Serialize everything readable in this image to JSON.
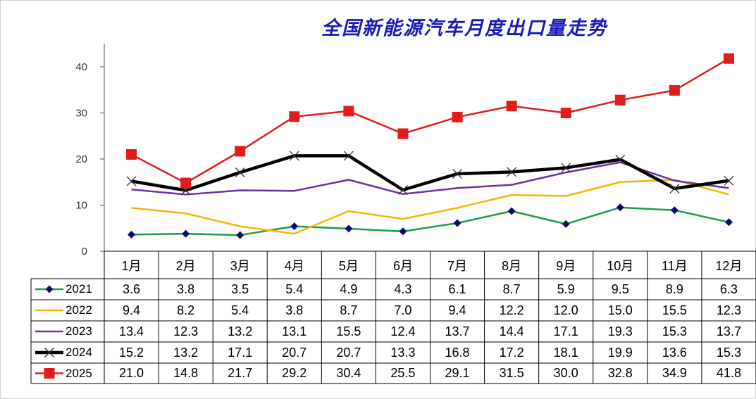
{
  "chart_data": {
    "type": "line",
    "title": "全国新能源汽车月度出口量走势",
    "categories": [
      "1月",
      "2月",
      "3月",
      "4月",
      "5月",
      "6月",
      "7月",
      "8月",
      "9月",
      "10月",
      "11月",
      "12月"
    ],
    "ylim": [
      0,
      45
    ],
    "yticks": [
      0,
      10,
      20,
      30,
      40
    ],
    "grid": false,
    "legend": "data table",
    "series": [
      {
        "name": "2021",
        "color": "#1aa04a",
        "marker": "diamond",
        "marker_color": "#0a0a6e",
        "values": [
          3.6,
          3.8,
          3.5,
          5.4,
          4.9,
          4.3,
          6.1,
          8.7,
          5.9,
          9.5,
          8.9,
          6.3
        ]
      },
      {
        "name": "2022",
        "color": "#f5b800",
        "marker": "none",
        "values": [
          9.4,
          8.2,
          5.4,
          3.8,
          8.7,
          7.0,
          9.4,
          12.2,
          12.0,
          15.0,
          15.5,
          12.3
        ]
      },
      {
        "name": "2023",
        "color": "#7030a0",
        "marker": "none",
        "values": [
          13.4,
          12.3,
          13.2,
          13.1,
          15.5,
          12.4,
          13.7,
          14.4,
          17.1,
          19.3,
          15.3,
          13.7
        ]
      },
      {
        "name": "2024",
        "color": "#000000",
        "marker": "x",
        "values": [
          15.2,
          13.2,
          17.1,
          20.7,
          20.7,
          13.3,
          16.8,
          17.2,
          18.1,
          19.9,
          13.6,
          15.3
        ]
      },
      {
        "name": "2025",
        "color": "#e31b1b",
        "marker": "square",
        "values": [
          21.0,
          14.8,
          21.7,
          29.2,
          30.4,
          25.5,
          29.1,
          31.5,
          30.0,
          32.8,
          34.9,
          41.8
        ]
      }
    ]
  }
}
